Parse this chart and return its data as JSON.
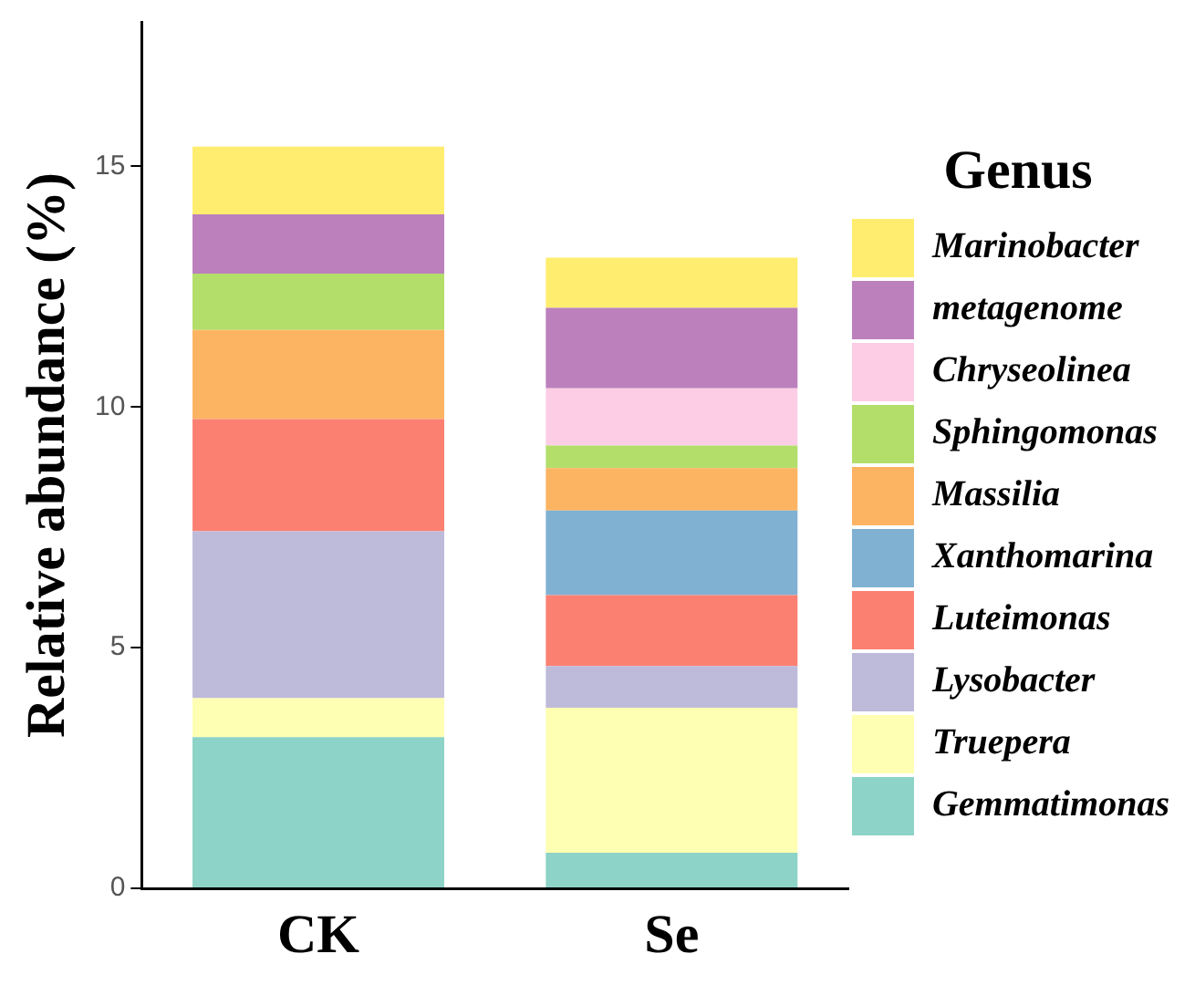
{
  "chart_data": {
    "type": "bar",
    "stacked": true,
    "ylabel": "Relative abundance (%)",
    "legend_title": "Genus",
    "legend": "right",
    "grid": false,
    "categories": [
      "CK",
      "Se"
    ],
    "ylim": [
      0,
      18
    ],
    "yticks": [
      0,
      5,
      10,
      15
    ],
    "series": [
      {
        "name": "Gemmatimonas",
        "color": "#8dd3c7",
        "values": [
          3.14,
          0.74
        ]
      },
      {
        "name": "Truepera",
        "color": "#ffffb3",
        "values": [
          0.81,
          3.01
        ]
      },
      {
        "name": "Lysobacter",
        "color": "#bebada",
        "values": [
          3.47,
          0.87
        ]
      },
      {
        "name": "Luteimonas",
        "color": "#fb8072",
        "values": [
          2.33,
          1.47
        ]
      },
      {
        "name": "Xanthomarina",
        "color": "#80b1d3",
        "values": [
          0,
          1.76
        ]
      },
      {
        "name": "Massilia",
        "color": "#fdb462",
        "values": [
          1.85,
          0.88
        ]
      },
      {
        "name": "Sphingomonas",
        "color": "#b3de69",
        "values": [
          1.17,
          0.47
        ]
      },
      {
        "name": "Chryseolinea",
        "color": "#fccde5",
        "values": [
          0,
          1.19
        ]
      },
      {
        "name": "metagenome",
        "color": "#bc80bd",
        "values": [
          1.23,
          1.67
        ]
      },
      {
        "name": "Marinobacter",
        "color": "#ffed6f",
        "values": [
          1.41,
          1.04
        ]
      }
    ]
  }
}
